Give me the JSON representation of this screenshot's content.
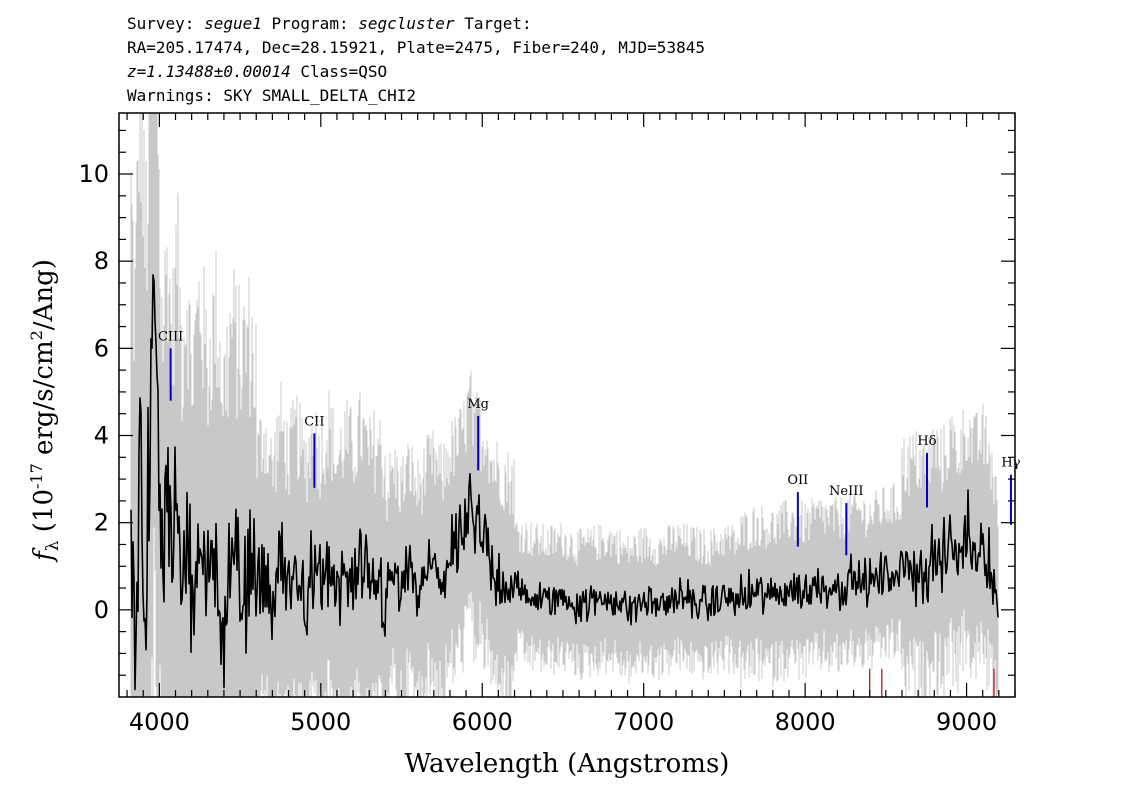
{
  "header": {
    "survey_label": "Survey:",
    "survey": "segue1",
    "program_label": "Program:",
    "program": "segcluster",
    "target_label": "Target:",
    "coords": "RA=205.17474, Dec=28.15921, Plate=2475, Fiber=240, MJD=53845",
    "redshift": "z=1.13488±0.00014",
    "class": "Class=QSO",
    "warnings": "Warnings: SKY SMALL_DELTA_CHI2"
  },
  "chart_data": {
    "type": "line",
    "xlabel": "Wavelength (Angstroms)",
    "ylabel": "f_λ (10^-17 erg/s/cm^2/Ang)",
    "xlim": [
      3750,
      9300
    ],
    "ylim": [
      -2.0,
      11.4
    ],
    "xticks": [
      4000,
      5000,
      6000,
      7000,
      8000,
      9000
    ],
    "yticks": [
      0,
      2,
      4,
      6,
      8,
      10
    ],
    "colors": {
      "flux": "#000000",
      "error": "#c8c8c8",
      "emission_line": "#0000cc",
      "sky_line": "#cc0000"
    },
    "series": [
      {
        "role": "flux (black)",
        "x": [
          3820,
          3850,
          3880,
          3910,
          3940,
          3965,
          3990,
          4020,
          4050,
          4080,
          4110,
          4140,
          4170,
          4200,
          4250,
          4300,
          4350,
          4400,
          4450,
          4500,
          4550,
          4600,
          4650,
          4700,
          4750,
          4800,
          4850,
          4900,
          4950,
          5000,
          5050,
          5100,
          5150,
          5200,
          5250,
          5300,
          5350,
          5400,
          5450,
          5500,
          5550,
          5600,
          5650,
          5700,
          5750,
          5800,
          5850,
          5900,
          5925,
          5950,
          5975,
          6000,
          6025,
          6050,
          6100,
          6150,
          6200,
          6300,
          6400,
          6500,
          6600,
          6700,
          6800,
          6900,
          7000,
          7100,
          7200,
          7300,
          7400,
          7500,
          7600,
          7700,
          7800,
          7900,
          8000,
          8100,
          8200,
          8300,
          8400,
          8500,
          8600,
          8700,
          8750,
          8800,
          8850,
          8900,
          8950,
          9000,
          9050,
          9100,
          9150,
          9180,
          9200
        ],
        "y": [
          2.0,
          -1.0,
          4.5,
          0.5,
          2.5,
          7.9,
          3.5,
          1.0,
          2.8,
          0.8,
          3.0,
          0.5,
          2.0,
          0.0,
          1.8,
          0.2,
          1.5,
          -0.3,
          1.2,
          0.4,
          1.0,
          0.2,
          1.0,
          0.0,
          1.2,
          0.3,
          1.0,
          0.1,
          0.9,
          0.4,
          1.1,
          0.2,
          0.8,
          0.5,
          1.0,
          0.3,
          0.7,
          0.2,
          0.8,
          0.4,
          0.9,
          0.3,
          0.8,
          1.0,
          0.6,
          1.2,
          1.4,
          1.9,
          2.6,
          1.5,
          2.2,
          1.3,
          1.8,
          1.0,
          0.8,
          0.6,
          0.5,
          0.3,
          0.2,
          0.3,
          0.1,
          0.2,
          0.3,
          0.0,
          0.2,
          0.1,
          0.3,
          0.2,
          0.1,
          0.3,
          0.2,
          0.4,
          0.3,
          0.5,
          0.4,
          0.6,
          0.5,
          0.7,
          0.6,
          0.8,
          0.9,
          1.0,
          0.8,
          1.3,
          1.0,
          1.5,
          1.2,
          1.8,
          1.3,
          1.6,
          1.0,
          0.4,
          -0.5
        ]
      }
    ],
    "emission_lines": [
      {
        "label": "CIII",
        "x": 4070,
        "top": 6.0,
        "bottom": 4.8
      },
      {
        "label": "CII",
        "x": 4960,
        "top": 4.05,
        "bottom": 2.8
      },
      {
        "label": "Mg",
        "x": 5975,
        "top": 4.45,
        "bottom": 3.2
      },
      {
        "label": "OII",
        "x": 7955,
        "top": 2.7,
        "bottom": 1.45
      },
      {
        "label": "NeIII",
        "x": 8255,
        "top": 2.45,
        "bottom": 1.25
      },
      {
        "label": "Hδ",
        "x": 8755,
        "top": 3.6,
        "bottom": 2.35
      },
      {
        "label": "Hγ",
        "x": 9275,
        "top": 3.1,
        "bottom": 1.95
      }
    ],
    "sky_lines": [
      8400,
      8475,
      9170
    ]
  }
}
